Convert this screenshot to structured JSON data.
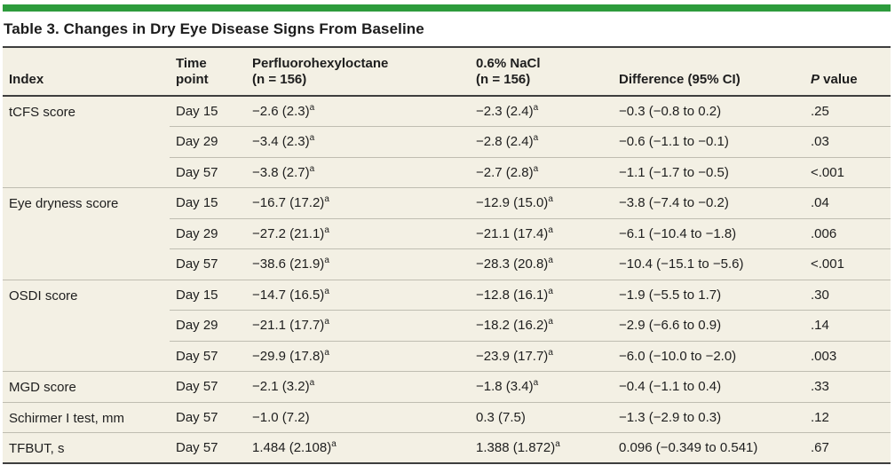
{
  "title": "Table 3. Changes in Dry Eye Disease Signs From Baseline",
  "colors": {
    "accent_bar": "#2d9b3c",
    "table_background": "#f3f0e4",
    "dark_rule": "#3e3e3e",
    "light_rule": "#bfbdb1",
    "text": "#1e1e1e"
  },
  "table": {
    "columns": [
      {
        "id": "index",
        "lines": [
          "Index"
        ]
      },
      {
        "id": "time_point",
        "lines": [
          "Time",
          "point"
        ]
      },
      {
        "id": "pfho",
        "lines": [
          "Perfluorohexyloctane",
          "(n = 156)"
        ]
      },
      {
        "id": "nacl",
        "lines": [
          "0.6% NaCl",
          "(n = 156)"
        ]
      },
      {
        "id": "difference",
        "lines": [
          "Difference (95% CI)"
        ]
      },
      {
        "id": "p_value",
        "lines": [
          "P value"
        ],
        "italic_prefix": "P",
        "rest": " value"
      }
    ],
    "footnote_marker": "a",
    "groups": [
      {
        "index": "tCFS score",
        "rows": [
          {
            "time_point": "Day 15",
            "pfho": "−2.6 (2.3)",
            "pfho_sup": "a",
            "nacl": "−2.3 (2.4)",
            "nacl_sup": "a",
            "difference": "−0.3 (−0.8 to 0.2)",
            "p_value": ".25"
          },
          {
            "time_point": "Day 29",
            "pfho": "−3.4 (2.3)",
            "pfho_sup": "a",
            "nacl": "−2.8 (2.4)",
            "nacl_sup": "a",
            "difference": "−0.6 (−1.1 to −0.1)",
            "p_value": ".03"
          },
          {
            "time_point": "Day 57",
            "pfho": "−3.8 (2.7)",
            "pfho_sup": "a",
            "nacl": "−2.7 (2.8)",
            "nacl_sup": "a",
            "difference": "−1.1 (−1.7 to −0.5)",
            "p_value": "<.001"
          }
        ]
      },
      {
        "index": "Eye dryness score",
        "rows": [
          {
            "time_point": "Day 15",
            "pfho": "−16.7 (17.2)",
            "pfho_sup": "a",
            "nacl": "−12.9 (15.0)",
            "nacl_sup": "a",
            "difference": "−3.8 (−7.4 to −0.2)",
            "p_value": ".04"
          },
          {
            "time_point": "Day 29",
            "pfho": "−27.2 (21.1)",
            "pfho_sup": "a",
            "nacl": "−21.1 (17.4)",
            "nacl_sup": "a",
            "difference": "−6.1 (−10.4 to −1.8)",
            "p_value": ".006"
          },
          {
            "time_point": "Day 57",
            "pfho": "−38.6 (21.9)",
            "pfho_sup": "a",
            "nacl": "−28.3 (20.8)",
            "nacl_sup": "a",
            "difference": "−10.4 (−15.1 to −5.6)",
            "p_value": "<.001"
          }
        ]
      },
      {
        "index": "OSDI score",
        "rows": [
          {
            "time_point": "Day 15",
            "pfho": "−14.7 (16.5)",
            "pfho_sup": "a",
            "nacl": "−12.8 (16.1)",
            "nacl_sup": "a",
            "difference": "−1.9 (−5.5 to 1.7)",
            "p_value": ".30"
          },
          {
            "time_point": "Day 29",
            "pfho": "−21.1 (17.7)",
            "pfho_sup": "a",
            "nacl": "−18.2 (16.2)",
            "nacl_sup": "a",
            "difference": "−2.9 (−6.6 to 0.9)",
            "p_value": ".14"
          },
          {
            "time_point": "Day 57",
            "pfho": "−29.9 (17.8)",
            "pfho_sup": "a",
            "nacl": "−23.9 (17.7)",
            "nacl_sup": "a",
            "difference": "−6.0 (−10.0 to −2.0)",
            "p_value": ".003"
          }
        ]
      },
      {
        "index": "MGD score",
        "rows": [
          {
            "time_point": "Day 57",
            "pfho": "−2.1 (3.2)",
            "pfho_sup": "a",
            "nacl": "−1.8 (3.4)",
            "nacl_sup": "a",
            "difference": "−0.4 (−1.1 to 0.4)",
            "p_value": ".33"
          }
        ]
      },
      {
        "index": "Schirmer I test, mm",
        "rows": [
          {
            "time_point": "Day 57",
            "pfho": "−1.0 (7.2)",
            "pfho_sup": "",
            "nacl": "0.3 (7.5)",
            "nacl_sup": "",
            "difference": "−1.3 (−2.9 to 0.3)",
            "p_value": ".12"
          }
        ]
      },
      {
        "index": "TFBUT, s",
        "rows": [
          {
            "time_point": "Day 57",
            "pfho": "1.484 (2.108)",
            "pfho_sup": "a",
            "nacl": "1.388 (1.872)",
            "nacl_sup": "a",
            "difference": "0.096 (−0.349 to 0.541)",
            "p_value": ".67"
          }
        ]
      }
    ]
  }
}
